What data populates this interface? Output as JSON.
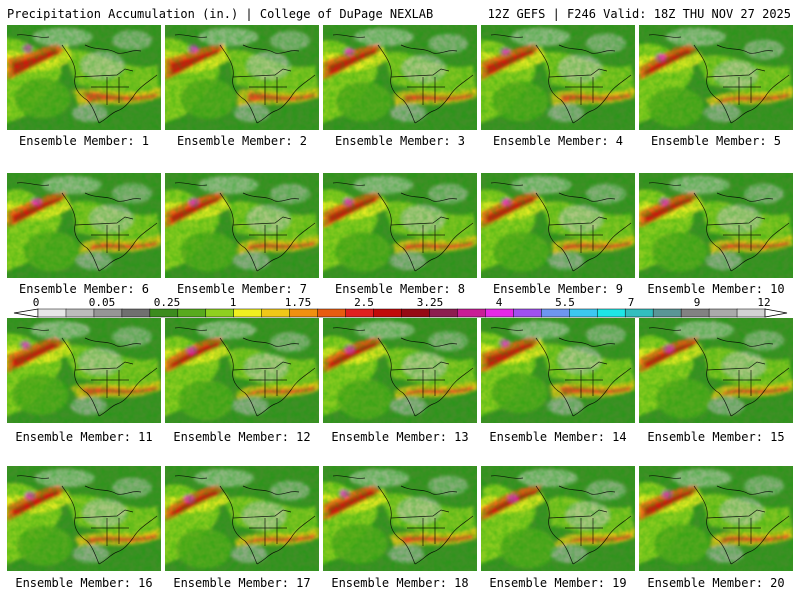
{
  "header": {
    "title": "Precipitation Accumulation (in.) | College of DuPage NEXLAB",
    "run_info": "12Z GEFS | F246 Valid: 18Z THU NOV 27 2025"
  },
  "colorbar": {
    "labels": [
      "0",
      "0.05",
      "0.25",
      "1",
      "1.75",
      "2.5",
      "3.25",
      "4",
      "5.5",
      "7",
      "9",
      "12"
    ],
    "colors": [
      "#e6e6e6",
      "#bcbcbc",
      "#969696",
      "#707070",
      "#3c8c1e",
      "#58aa1e",
      "#8fd020",
      "#f0f020",
      "#f0c818",
      "#f09010",
      "#e85c10",
      "#e02020",
      "#c00a0a",
      "#960a14",
      "#8c1e50",
      "#c81e96",
      "#e628e6",
      "#a050f0",
      "#6e96f0",
      "#3cc8f0",
      "#1ee6e6",
      "#32bebe",
      "#5a9696",
      "#828282",
      "#aaaaaa",
      "#d2d2d2"
    ]
  },
  "panels": [
    {
      "caption": "Ensemble Member: 1"
    },
    {
      "caption": "Ensemble Member: 2"
    },
    {
      "caption": "Ensemble Member: 3"
    },
    {
      "caption": "Ensemble Member: 4"
    },
    {
      "caption": "Ensemble Member: 5"
    },
    {
      "caption": "Ensemble Member: 6"
    },
    {
      "caption": "Ensemble Member: 7"
    },
    {
      "caption": "Ensemble Member: 8"
    },
    {
      "caption": "Ensemble Member: 9"
    },
    {
      "caption": "Ensemble Member: 10"
    },
    {
      "caption": "Ensemble Member: 11"
    },
    {
      "caption": "Ensemble Member: 12"
    },
    {
      "caption": "Ensemble Member: 13"
    },
    {
      "caption": "Ensemble Member: 14"
    },
    {
      "caption": "Ensemble Member: 15"
    },
    {
      "caption": "Ensemble Member: 16"
    },
    {
      "caption": "Ensemble Member: 17"
    },
    {
      "caption": "Ensemble Member: 18"
    },
    {
      "caption": "Ensemble Member: 19"
    },
    {
      "caption": "Ensemble Member: 20"
    }
  ]
}
